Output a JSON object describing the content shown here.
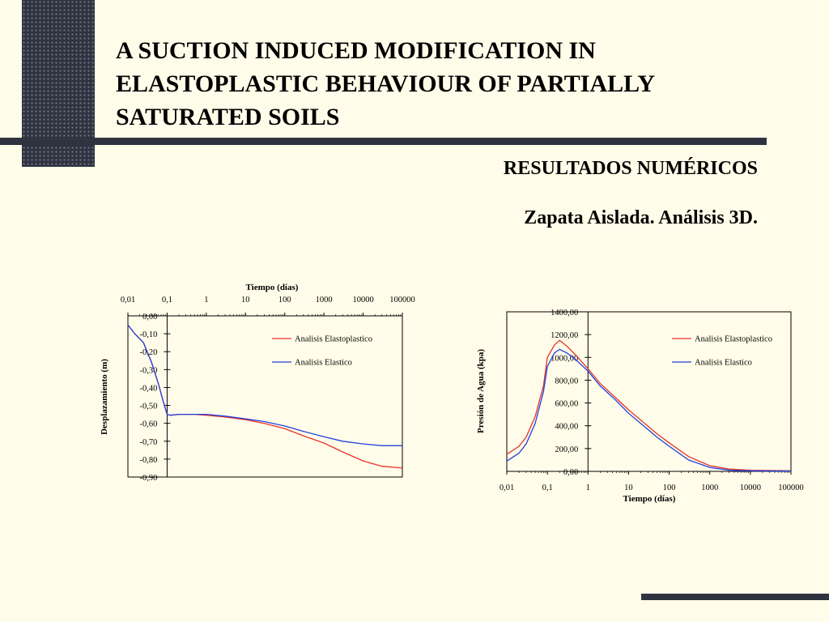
{
  "slide": {
    "title": "A SUCTION INDUCED MODIFICATION IN ELASTOPLASTIC BEHAVIOUR OF PARTIALLY SATURATED SOILS",
    "subtitle": "RESULTADOS NUMÉRICOS",
    "subtitle2": "Zapata Aislada. Análisis 3D."
  },
  "colors": {
    "background": "#fffde9",
    "decoration": "#2f3340",
    "series_elastoplastic": "#e8312a",
    "series_elastic": "#2040e0"
  },
  "chart_data": [
    {
      "type": "line",
      "title": "",
      "xlabel": "Tiempo (días)",
      "ylabel": "Desplazamiento (m)",
      "x_scale": "log",
      "xlim": [
        0.01,
        100000
      ],
      "ylim": [
        -0.9,
        0
      ],
      "x_tick_labels": [
        "0,01",
        "0,1",
        "1",
        "10",
        "100",
        "1000",
        "10000",
        "100000"
      ],
      "y_tick_labels": [
        "0,00",
        "-0,10",
        "-0,20",
        "-0,30",
        "-0,40",
        "-0,50",
        "-0,60",
        "-0,70",
        "-0,80",
        "-0,90"
      ],
      "x_axis_position": "top",
      "y_axis_crosses_at_x": 0.1,
      "legend_position": "top-right",
      "grid": false,
      "series": [
        {
          "name": "Analisis Elastoplastico",
          "x": [
            0.01,
            0.015,
            0.025,
            0.04,
            0.06,
            0.08,
            0.1,
            0.12,
            0.2,
            0.5,
            1,
            3,
            10,
            30,
            100,
            300,
            1000,
            3000,
            10000,
            30000,
            100000
          ],
          "y": [
            -0.05,
            -0.1,
            -0.15,
            -0.26,
            -0.38,
            -0.48,
            -0.55,
            -0.555,
            -0.55,
            -0.55,
            -0.555,
            -0.565,
            -0.58,
            -0.6,
            -0.63,
            -0.67,
            -0.71,
            -0.76,
            -0.81,
            -0.84,
            -0.85
          ]
        },
        {
          "name": "Analisis Elastico",
          "x": [
            0.01,
            0.015,
            0.025,
            0.04,
            0.06,
            0.08,
            0.1,
            0.12,
            0.2,
            0.5,
            1,
            3,
            10,
            30,
            100,
            300,
            1000,
            3000,
            10000,
            30000,
            100000
          ],
          "y": [
            -0.05,
            -0.1,
            -0.15,
            -0.26,
            -0.38,
            -0.48,
            -0.55,
            -0.555,
            -0.55,
            -0.55,
            -0.55,
            -0.56,
            -0.575,
            -0.59,
            -0.615,
            -0.645,
            -0.675,
            -0.7,
            -0.715,
            -0.725,
            -0.725
          ]
        }
      ]
    },
    {
      "type": "line",
      "title": "",
      "xlabel": "Tiempo (días)",
      "ylabel": "Presión de Agua (kpa)",
      "x_scale": "log",
      "xlim": [
        0.01,
        100000
      ],
      "ylim": [
        0,
        1400
      ],
      "x_tick_labels": [
        "0,01",
        "0,1",
        "1",
        "10",
        "100",
        "1000",
        "10000",
        "100000"
      ],
      "y_tick_labels": [
        "0,00",
        "200,00",
        "400,00",
        "600,00",
        "800,00",
        "1000,00",
        "1200,00",
        "1400,00"
      ],
      "x_axis_position": "bottom",
      "y_axis_crosses_at_x": 1,
      "legend_position": "top-right",
      "grid": false,
      "series": [
        {
          "name": "Analisis Elastoplastico",
          "x": [
            0.01,
            0.02,
            0.03,
            0.05,
            0.08,
            0.1,
            0.15,
            0.2,
            0.3,
            0.5,
            1,
            2,
            5,
            10,
            20,
            50,
            100,
            300,
            1000,
            3000,
            10000,
            100000
          ],
          "y": [
            150,
            220,
            300,
            480,
            750,
            1000,
            1110,
            1150,
            1100,
            1020,
            900,
            770,
            640,
            540,
            450,
            330,
            250,
            130,
            50,
            20,
            10,
            5
          ]
        },
        {
          "name": "Analisis Elastico",
          "x": [
            0.01,
            0.02,
            0.03,
            0.05,
            0.08,
            0.1,
            0.15,
            0.2,
            0.3,
            0.5,
            1,
            2,
            5,
            10,
            20,
            50,
            100,
            300,
            1000,
            3000,
            10000,
            100000
          ],
          "y": [
            90,
            160,
            240,
            420,
            700,
            920,
            1040,
            1070,
            1040,
            980,
            880,
            750,
            620,
            510,
            420,
            300,
            220,
            100,
            35,
            10,
            5,
            2
          ]
        }
      ]
    }
  ]
}
